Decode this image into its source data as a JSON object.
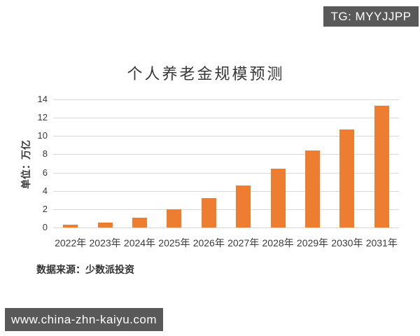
{
  "badges": {
    "telegram": "TG: MYYJJPP",
    "website": "www.china-zhn-kaiyu.com"
  },
  "chart_data": {
    "type": "bar",
    "title": "个人养老金规模预测",
    "ylabel": "单位：万亿",
    "xlabel": "",
    "categories": [
      "2022年",
      "2023年",
      "2024年",
      "2025年",
      "2026年",
      "2027年",
      "2028年",
      "2029年",
      "2030年",
      "2031年"
    ],
    "values": [
      0.3,
      0.5,
      1.1,
      2.0,
      3.2,
      4.6,
      6.4,
      8.4,
      10.7,
      13.3
    ],
    "ylim": [
      0,
      14
    ],
    "yticks": [
      0,
      2,
      4,
      6,
      8,
      10,
      12,
      14
    ],
    "grid": true,
    "legend_position": "none",
    "bar_color": "#ED7D31",
    "gridline_color": "#D9D9D9",
    "axis_text_color": "#3A3A3A"
  },
  "footer": {
    "source": "数据来源：少数派投资"
  },
  "colors": {
    "badge_background": "#595959",
    "badge_text": "#FFFFFF",
    "background": "#FFFFFF"
  }
}
